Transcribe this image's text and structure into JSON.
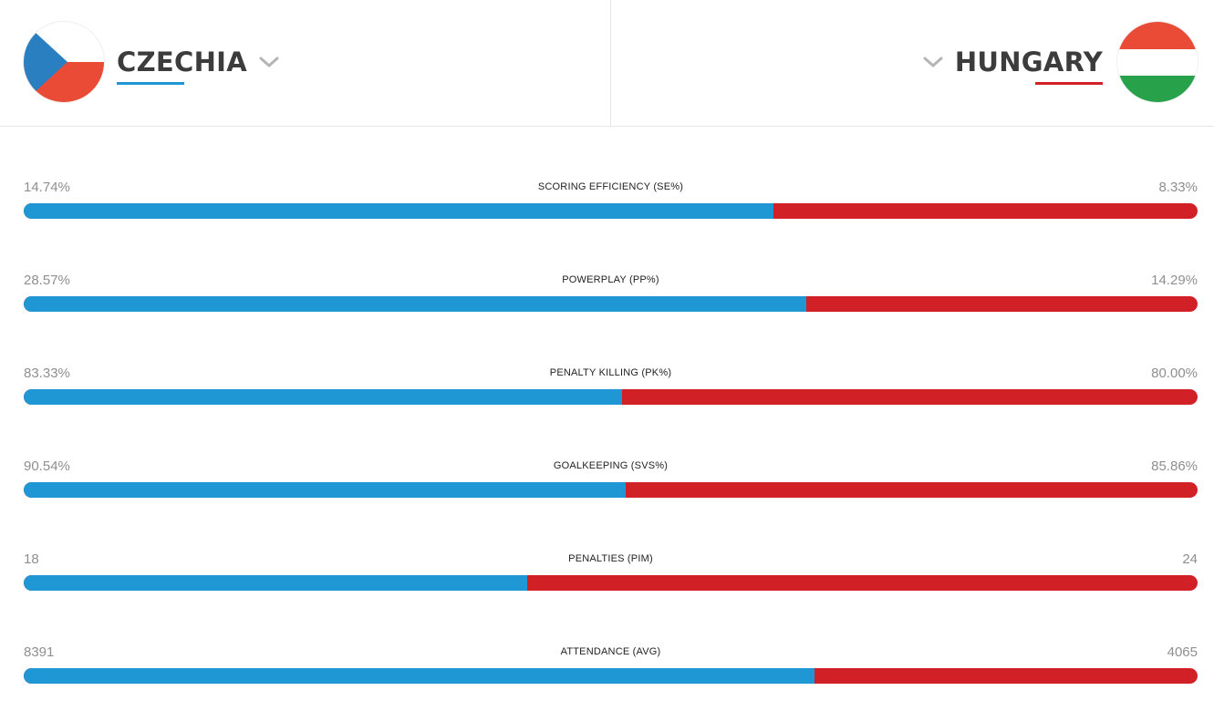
{
  "home": {
    "name": "CZECHIA",
    "color": "#1e97d4",
    "flag_icon": "czech-flag-icon"
  },
  "away": {
    "name": "HUNGARY",
    "color": "#d22027",
    "flag_icon": "hungary-flag-icon"
  },
  "stats": [
    {
      "label": "SCORING EFFICIENCY (SE%)",
      "home": "14.74%",
      "away": "8.33%",
      "home_share": 0.639
    },
    {
      "label": "POWERPLAY (PP%)",
      "home": "28.57%",
      "away": "14.29%",
      "home_share": 0.667
    },
    {
      "label": "PENALTY KILLING (PK%)",
      "home": "83.33%",
      "away": "80.00%",
      "home_share": 0.51
    },
    {
      "label": "GOALKEEPING (SVS%)",
      "home": "90.54%",
      "away": "85.86%",
      "home_share": 0.513
    },
    {
      "label": "PENALTIES (PIM)",
      "home": "18",
      "away": "24",
      "home_share": 0.429
    },
    {
      "label": "ATTENDANCE (AVG)",
      "home": "8391",
      "away": "4065",
      "home_share": 0.674
    }
  ]
}
